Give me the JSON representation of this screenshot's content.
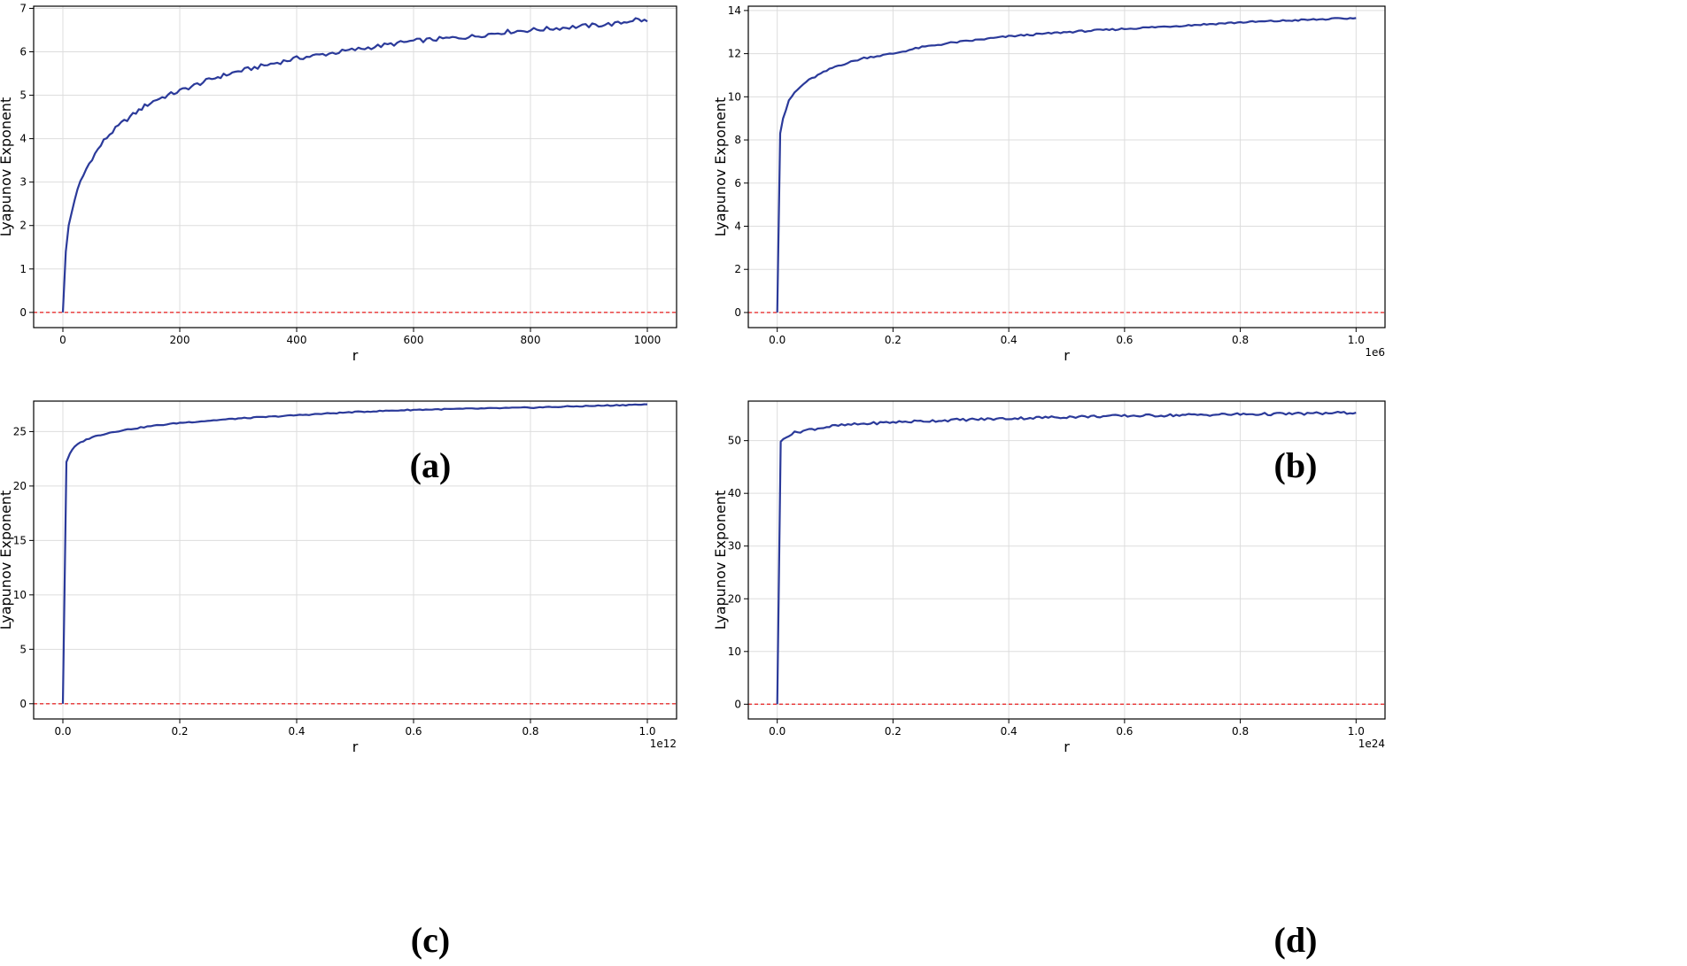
{
  "colors": {
    "series": "#2b3a9a",
    "reference": "#e83030",
    "grid": "#dddddd",
    "axis": "#000000"
  },
  "chart_data": [
    {
      "panel": "a",
      "caption": "(a)",
      "type": "line",
      "xlabel": "r",
      "ylabel": "Lyapunov Exponent",
      "x_multiplier": "",
      "xlim": [
        -50,
        1050
      ],
      "ylim": [
        -0.35,
        7.05
      ],
      "xticks": [
        0,
        200,
        400,
        600,
        800,
        1000
      ],
      "xtick_labels": [
        "0",
        "200",
        "400",
        "600",
        "800",
        "1000"
      ],
      "yticks": [
        0,
        1,
        2,
        3,
        4,
        5,
        6,
        7
      ],
      "ytick_labels": [
        "0",
        "1",
        "2",
        "3",
        "4",
        "5",
        "6",
        "7"
      ],
      "grid": true,
      "reference_line": 0,
      "series": [
        {
          "name": "Lyapunov Exponent",
          "x": [
            0,
            5,
            10,
            20,
            30,
            40,
            50,
            60,
            70,
            80,
            100,
            120,
            140,
            160,
            180,
            200,
            230,
            260,
            300,
            350,
            400,
            450,
            500,
            550,
            600,
            650,
            700,
            750,
            800,
            850,
            900,
            950,
            980,
            1000
          ],
          "y": [
            0,
            1.4,
            2.0,
            2.6,
            3.0,
            3.3,
            3.55,
            3.75,
            3.95,
            4.1,
            4.35,
            4.55,
            4.75,
            4.9,
            5.0,
            5.1,
            5.25,
            5.4,
            5.55,
            5.7,
            5.85,
            5.95,
            6.05,
            6.15,
            6.25,
            6.3,
            6.35,
            6.45,
            6.5,
            6.55,
            6.6,
            6.65,
            6.75,
            6.7
          ],
          "noise": 0.05
        }
      ]
    },
    {
      "panel": "b",
      "caption": "(b)",
      "type": "line",
      "xlabel": "r",
      "ylabel": "Lyapunov Exponent",
      "x_multiplier": "1e6",
      "xlim": [
        -0.05,
        1.05
      ],
      "ylim": [
        -0.7,
        14.2
      ],
      "xticks": [
        0,
        0.2,
        0.4,
        0.6,
        0.8,
        1.0
      ],
      "xtick_labels": [
        "0.0",
        "0.2",
        "0.4",
        "0.6",
        "0.8",
        "1.0"
      ],
      "yticks": [
        0,
        2,
        4,
        6,
        8,
        10,
        12,
        14
      ],
      "ytick_labels": [
        "0",
        "2",
        "4",
        "6",
        "8",
        "10",
        "12",
        "14"
      ],
      "grid": true,
      "reference_line": 0,
      "series": [
        {
          "name": "Lyapunov Exponent",
          "x": [
            0,
            0.005,
            0.01,
            0.02,
            0.03,
            0.05,
            0.07,
            0.1,
            0.15,
            0.2,
            0.25,
            0.3,
            0.4,
            0.5,
            0.6,
            0.7,
            0.8,
            0.9,
            1.0
          ],
          "y": [
            0,
            8.3,
            9.0,
            9.8,
            10.2,
            10.7,
            11.0,
            11.4,
            11.8,
            12.0,
            12.3,
            12.5,
            12.8,
            13.0,
            13.15,
            13.3,
            13.45,
            13.55,
            13.65
          ],
          "noise": 0.04
        }
      ]
    },
    {
      "panel": "c",
      "caption": "(c)",
      "type": "line",
      "xlabel": "r",
      "ylabel": "Lyapunov Exponent",
      "x_multiplier": "1e12",
      "xlim": [
        -0.05,
        1.05
      ],
      "ylim": [
        -1.4,
        27.8
      ],
      "xticks": [
        0,
        0.2,
        0.4,
        0.6,
        0.8,
        1.0
      ],
      "xtick_labels": [
        "0.0",
        "0.2",
        "0.4",
        "0.6",
        "0.8",
        "1.0"
      ],
      "yticks": [
        0,
        5,
        10,
        15,
        20,
        25
      ],
      "ytick_labels": [
        "0",
        "5",
        "10",
        "15",
        "20",
        "25"
      ],
      "grid": true,
      "reference_line": 0,
      "series": [
        {
          "name": "Lyapunov Exponent",
          "x": [
            0,
            0.006,
            0.012,
            0.02,
            0.03,
            0.05,
            0.08,
            0.1,
            0.15,
            0.2,
            0.3,
            0.4,
            0.5,
            0.6,
            0.7,
            0.8,
            0.9,
            1.0
          ],
          "y": [
            0,
            22.2,
            23.0,
            23.6,
            24.0,
            24.5,
            24.9,
            25.1,
            25.5,
            25.8,
            26.2,
            26.5,
            26.8,
            27.0,
            27.1,
            27.2,
            27.35,
            27.5
          ],
          "noise": 0.05
        }
      ]
    },
    {
      "panel": "d",
      "caption": "(d)",
      "type": "line",
      "xlabel": "r",
      "ylabel": "Lyapunov Exponent",
      "x_multiplier": "1e24",
      "xlim": [
        -0.05,
        1.05
      ],
      "ylim": [
        -2.8,
        57.5
      ],
      "xticks": [
        0,
        0.2,
        0.4,
        0.6,
        0.8,
        1.0
      ],
      "xtick_labels": [
        "0.0",
        "0.2",
        "0.4",
        "0.6",
        "0.8",
        "1.0"
      ],
      "yticks": [
        0,
        10,
        20,
        30,
        40,
        50
      ],
      "ytick_labels": [
        "0",
        "10",
        "20",
        "30",
        "40",
        "50"
      ],
      "grid": true,
      "reference_line": 0,
      "series": [
        {
          "name": "Lyapunov Exponent",
          "x": [
            0,
            0.006,
            0.015,
            0.03,
            0.05,
            0.08,
            0.1,
            0.15,
            0.2,
            0.3,
            0.4,
            0.5,
            0.6,
            0.7,
            0.8,
            0.9,
            1.0
          ],
          "y": [
            0,
            49.8,
            50.8,
            51.5,
            52.0,
            52.5,
            52.8,
            53.2,
            53.5,
            53.9,
            54.2,
            54.5,
            54.7,
            54.85,
            55.0,
            55.1,
            55.3
          ],
          "noise": 0.25
        }
      ]
    }
  ]
}
